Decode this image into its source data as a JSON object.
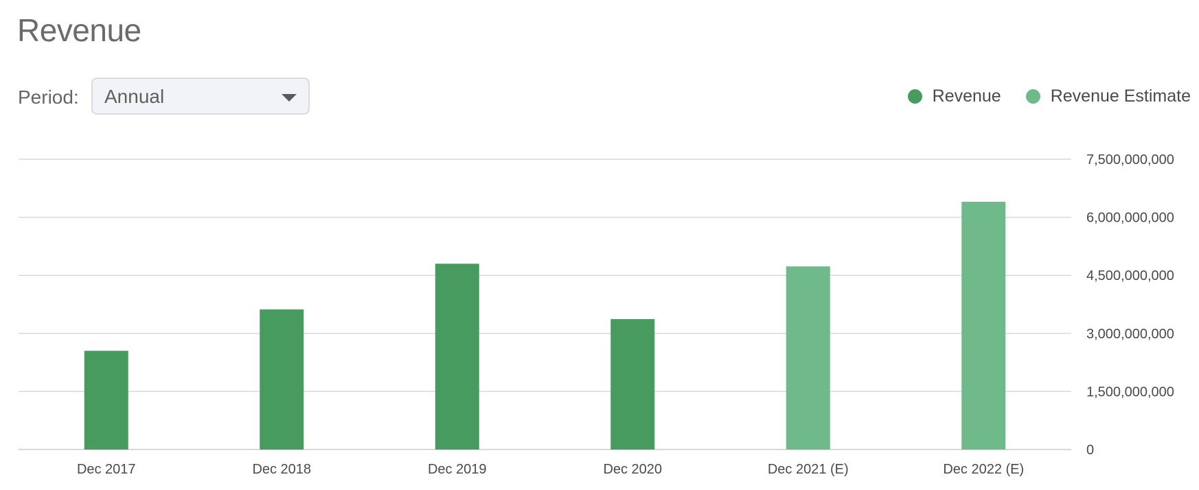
{
  "header": {
    "title": "Revenue"
  },
  "controls": {
    "period_label": "Period:",
    "period_value": "Annual"
  },
  "legend": [
    {
      "label": "Revenue",
      "color": "#489b5f"
    },
    {
      "label": "Revenue Estimate",
      "color": "#70b98a"
    }
  ],
  "chart_data": {
    "type": "bar",
    "title": "Revenue",
    "categories": [
      "Dec 2017",
      "Dec 2018",
      "Dec 2019",
      "Dec 2020",
      "Dec 2021 (E)",
      "Dec 2022 (E)"
    ],
    "series": [
      {
        "name": "Revenue",
        "color": "#489b5f",
        "values": [
          2550000000,
          3620000000,
          4800000000,
          3370000000,
          null,
          null
        ]
      },
      {
        "name": "Revenue Estimate",
        "color": "#70b98a",
        "values": [
          null,
          null,
          null,
          null,
          4730000000,
          6400000000
        ]
      }
    ],
    "ylim": [
      0,
      7500000000
    ],
    "yticks": [
      0,
      1500000000,
      3000000000,
      4500000000,
      6000000000,
      7500000000
    ],
    "ytick_labels": [
      "0",
      "1,500,000,000",
      "3,000,000,000",
      "4,500,000,000",
      "6,000,000,000",
      "7,500,000,000"
    ],
    "y_axis_side": "right",
    "grid": true,
    "legend_position": "top-right"
  }
}
